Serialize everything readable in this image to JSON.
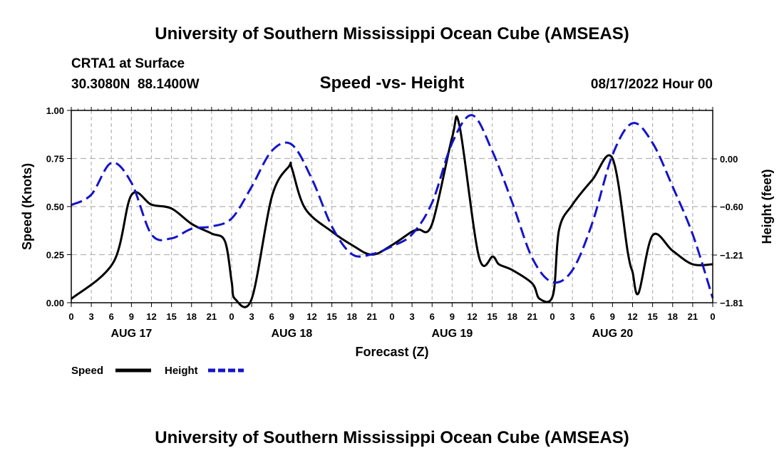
{
  "page_title": "University of Southern Mississippi Ocean Cube (AMSEAS)",
  "footer_title": "University of Southern Mississippi Ocean Cube (AMSEAS)",
  "station": {
    "name": "CRTA1 at Surface",
    "lat": "30.3080N",
    "lon": "88.1400W",
    "coords": "30.3080N  88.1400W",
    "date_label": "08/17/2022 Hour 00"
  },
  "colors": {
    "speed": "#000000",
    "height": "#1414c8",
    "grid": "#b4b4b4",
    "axis": "#000000"
  },
  "chart_data": {
    "type": "line",
    "title": "Speed -vs- Height",
    "xlabel": "Forecast (Z)",
    "ylabel_left": "Speed (Knots)",
    "ylabel_right": "Height (feet)",
    "x_unit": "forecast hour",
    "xlim": [
      0,
      96
    ],
    "x_tick_hours": [
      0,
      3,
      6,
      9,
      12,
      15,
      18,
      21,
      24,
      27,
      30,
      33,
      36,
      39,
      42,
      45,
      48,
      51,
      54,
      57,
      60,
      63,
      66,
      69,
      72,
      75,
      78,
      81,
      84,
      87,
      90,
      93,
      96
    ],
    "x_tick_labels": [
      "0",
      "3",
      "6",
      "9",
      "12",
      "15",
      "18",
      "21",
      "0",
      "3",
      "6",
      "9",
      "12",
      "15",
      "18",
      "21",
      "0",
      "3",
      "6",
      "9",
      "12",
      "15",
      "18",
      "21",
      "0",
      "3",
      "6",
      "9",
      "12",
      "15",
      "18",
      "21",
      "0"
    ],
    "day_labels": [
      {
        "label": "AUG 17",
        "hour": 9
      },
      {
        "label": "AUG 18",
        "hour": 33
      },
      {
        "label": "AUG 19",
        "hour": 57
      },
      {
        "label": "AUG 20",
        "hour": 81
      }
    ],
    "ylim_left": [
      0,
      1
    ],
    "yticks_left": [
      0,
      0.25,
      0.5,
      0.75,
      1.0
    ],
    "ytick_labels_left": [
      "0.00",
      "0.25",
      "0.50",
      "0.75",
      "1.00"
    ],
    "ylim_right": [
      -1.81,
      0.61
    ],
    "yticks_right": [
      -1.81,
      -1.21,
      -0.6,
      0.0
    ],
    "ytick_labels_right": [
      "−1.81",
      "−1.21",
      "−0.60",
      "0.00"
    ],
    "grid": true,
    "legend_position": "bottom-left",
    "series": [
      {
        "name": "Speed",
        "axis": "left",
        "style": "solid",
        "x": [
          0,
          6.3,
          9,
          12,
          15,
          18,
          21,
          23,
          24,
          24.5,
          27,
          30,
          32.6,
          33,
          35,
          39,
          42,
          45,
          48,
          51,
          52,
          54,
          57,
          58.1,
          61,
          63.1,
          64,
          66,
          69,
          70.1,
          72.1,
          73,
          75,
          78,
          81,
          83.3,
          84,
          84.9,
          87,
          90,
          93,
          96
        ],
        "y": [
          0.02,
          0.21,
          0.56,
          0.51,
          0.49,
          0.41,
          0.36,
          0.32,
          0.11,
          0.02,
          0.02,
          0.55,
          0.71,
          0.7,
          0.49,
          0.37,
          0.3,
          0.25,
          0.3,
          0.37,
          0.38,
          0.41,
          0.86,
          0.92,
          0.24,
          0.24,
          0.2,
          0.17,
          0.1,
          0.02,
          0.04,
          0.38,
          0.51,
          0.64,
          0.75,
          0.26,
          0.16,
          0.05,
          0.35,
          0.27,
          0.2,
          0.2
        ]
      },
      {
        "name": "Height",
        "axis": "right",
        "style": "dashed",
        "x": [
          0,
          3,
          6,
          9,
          12,
          15,
          18,
          21,
          24,
          27,
          30,
          33,
          36,
          39,
          42,
          45,
          48,
          51,
          54,
          57,
          60,
          63,
          66,
          69,
          72,
          75,
          78,
          81,
          84,
          87,
          90,
          93,
          96
        ],
        "y": [
          -0.58,
          -0.45,
          -0.05,
          -0.3,
          -0.95,
          -1.0,
          -0.88,
          -0.85,
          -0.75,
          -0.35,
          0.1,
          0.18,
          -0.25,
          -0.85,
          -1.2,
          -1.2,
          -1.1,
          -0.95,
          -0.55,
          0.2,
          0.55,
          0.1,
          -0.55,
          -1.25,
          -1.55,
          -1.4,
          -0.8,
          0.05,
          0.45,
          0.2,
          -0.35,
          -0.95,
          -1.75
        ]
      }
    ]
  }
}
